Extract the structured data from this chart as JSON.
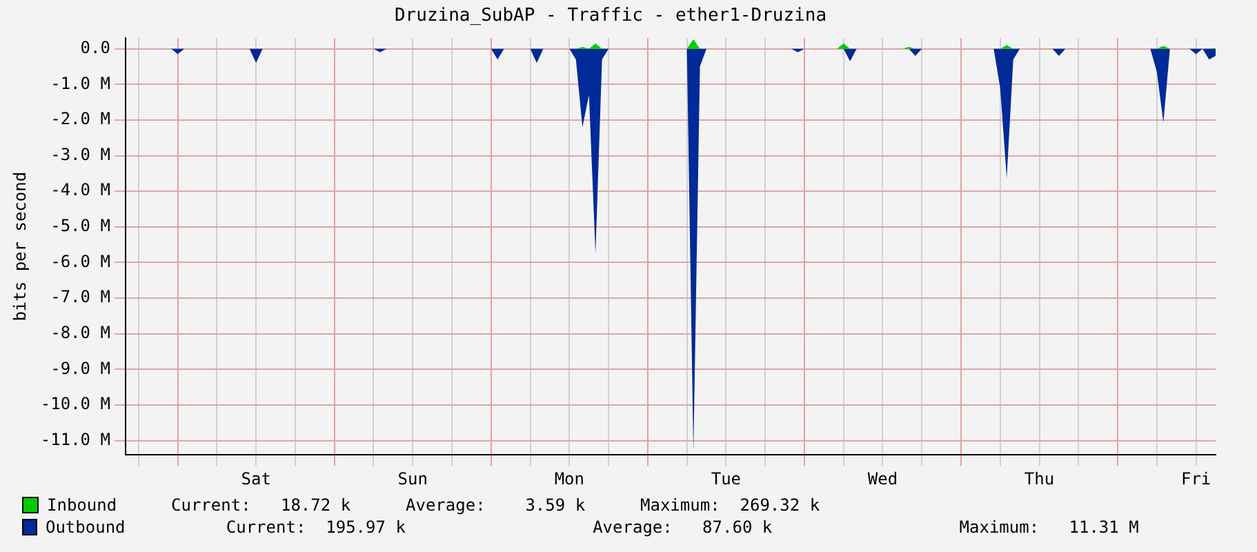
{
  "chart_data": {
    "type": "area",
    "title": "Druzina_SubAP - Traffic - ether1-Druzina",
    "ylabel": "bits per second",
    "categories": [
      null,
      null,
      null,
      null,
      null,
      null,
      null,
      null,
      null,
      null,
      null,
      null,
      null,
      null,
      null,
      null,
      null,
      null,
      null,
      null,
      "Sat",
      null,
      null,
      null,
      null,
      null,
      null,
      null,
      null,
      null,
      null,
      null,
      null,
      null,
      null,
      null,
      null,
      null,
      null,
      null,
      null,
      null,
      null,
      null,
      "Sun",
      null,
      null,
      null,
      null,
      null,
      null,
      null,
      null,
      null,
      null,
      null,
      null,
      null,
      null,
      null,
      null,
      null,
      null,
      null,
      null,
      null,
      null,
      null,
      "Mon",
      null,
      null,
      null,
      null,
      null,
      null,
      null,
      null,
      null,
      null,
      null,
      null,
      null,
      null,
      null,
      null,
      null,
      null,
      null,
      null,
      null,
      null,
      null,
      "Tue",
      null,
      null,
      null,
      null,
      null,
      null,
      null,
      null,
      null,
      null,
      null,
      null,
      null,
      null,
      null,
      null,
      null,
      null,
      null,
      null,
      null,
      null,
      null,
      "Wed",
      null,
      null,
      null,
      null,
      null,
      null,
      null,
      null,
      null,
      null,
      null,
      null,
      null,
      null,
      null,
      null,
      null,
      null,
      null,
      null,
      null,
      null,
      null,
      "Thu",
      null,
      null,
      null,
      null,
      null,
      null,
      null,
      null,
      null,
      null,
      null,
      null,
      null,
      null,
      null,
      null,
      null,
      null,
      null,
      null,
      null,
      null,
      null,
      "Fri",
      null,
      null,
      null
    ],
    "ylim": [
      -11.4,
      0.3
    ],
    "yticks": [
      {
        "value": 0,
        "label": "0.0"
      },
      {
        "value": -1,
        "label": "-1.0 M"
      },
      {
        "value": -2,
        "label": "-2.0 M"
      },
      {
        "value": -3,
        "label": "-3.0 M"
      },
      {
        "value": -4,
        "label": "-4.0 M"
      },
      {
        "value": -5,
        "label": "-5.0 M"
      },
      {
        "value": -6,
        "label": "-6.0 M"
      },
      {
        "value": -7,
        "label": "-7.0 M"
      },
      {
        "value": -8,
        "label": "-8.0 M"
      },
      {
        "value": -9,
        "label": "-9.0 M"
      },
      {
        "value": -10,
        "label": "-10.0 M"
      },
      {
        "value": -11,
        "label": "-11.0 M"
      }
    ],
    "grid": true,
    "legend": "bottom",
    "series": [
      {
        "name": "Inbound",
        "color": "#00cc00",
        "values": [
          0,
          0,
          0,
          0,
          0,
          0,
          0,
          0,
          0,
          0,
          0,
          0,
          0,
          0,
          0,
          0,
          0,
          0,
          0,
          0,
          0,
          0,
          0,
          0,
          0,
          0,
          0,
          0,
          0,
          0,
          0,
          0,
          0,
          0,
          0,
          0,
          0,
          0,
          0,
          0,
          0,
          0,
          0,
          0,
          0,
          0,
          0,
          0,
          0,
          0,
          0,
          0,
          0,
          0,
          0,
          0,
          0,
          0,
          0,
          0,
          0,
          0,
          0,
          0,
          0,
          0,
          0,
          0,
          0,
          0,
          0.05,
          0,
          0.15,
          0,
          0,
          0,
          0,
          0,
          0,
          0,
          0,
          0,
          0,
          0,
          0,
          0,
          0,
          0.27,
          0,
          0,
          0,
          0,
          0,
          0,
          0,
          0,
          0,
          0,
          0,
          0,
          0,
          0,
          0,
          0,
          0,
          0,
          0,
          0,
          0,
          0,
          0.15,
          0,
          0,
          0,
          0,
          0,
          0,
          0,
          0,
          0,
          0.05,
          0,
          0,
          0,
          0,
          0,
          0,
          0,
          0,
          0,
          0,
          0,
          0,
          0,
          0,
          0.1,
          0,
          0,
          0,
          0,
          0,
          0,
          0,
          0,
          0,
          0,
          0,
          0,
          0,
          0,
          0,
          0,
          0,
          0,
          0,
          0,
          0,
          0,
          0,
          0.08,
          0,
          0,
          0,
          0,
          0,
          0,
          0,
          0.02
        ]
      },
      {
        "name": "Outbound",
        "color": "#002a97",
        "values": [
          0,
          0,
          0,
          0,
          0,
          0,
          0,
          0,
          -0.15,
          0,
          0,
          0,
          0,
          0,
          0,
          0,
          0,
          0,
          0,
          0,
          -0.4,
          0,
          0,
          0,
          0,
          0,
          0,
          0,
          0,
          0,
          0,
          0,
          0,
          0,
          0,
          0,
          0,
          0,
          0,
          -0.1,
          0,
          0,
          0,
          0,
          0,
          0,
          0,
          0,
          0,
          0,
          0,
          0,
          0,
          0,
          0,
          0,
          0,
          -0.3,
          0,
          0,
          0,
          0,
          0,
          -0.4,
          0,
          0,
          0,
          0,
          0,
          -0.3,
          -2.2,
          -1.3,
          -5.75,
          -0.3,
          0,
          0,
          0,
          0,
          0,
          0,
          0,
          0,
          0,
          0,
          0,
          0,
          0,
          -11.31,
          -0.5,
          0,
          0,
          0,
          0,
          0,
          0,
          0,
          0,
          0,
          0,
          0,
          0,
          0,
          0,
          -0.1,
          0,
          0,
          0,
          0,
          0,
          0,
          0,
          -0.35,
          0,
          0,
          0,
          0,
          0,
          0,
          0,
          0,
          0,
          -0.2,
          0,
          0,
          0,
          0,
          0,
          0,
          0,
          0,
          0,
          0,
          0,
          0,
          -1.1,
          -3.63,
          -0.3,
          0,
          0,
          0,
          0,
          0,
          0,
          -0.2,
          0,
          0,
          0,
          0,
          0,
          0,
          0,
          0,
          0,
          0,
          0,
          0,
          0,
          0,
          -0.65,
          -2.07,
          0,
          0,
          0,
          0,
          -0.15,
          0,
          -0.3,
          -0.2
        ]
      }
    ],
    "annotations": [
      "Current:   18.72 k",
      "Average:    3.59 k",
      "Maximum:  269.32 k",
      "Current:  195.97 k",
      "Average:   87.60 k",
      "Maximum:   11.31 M"
    ]
  }
}
